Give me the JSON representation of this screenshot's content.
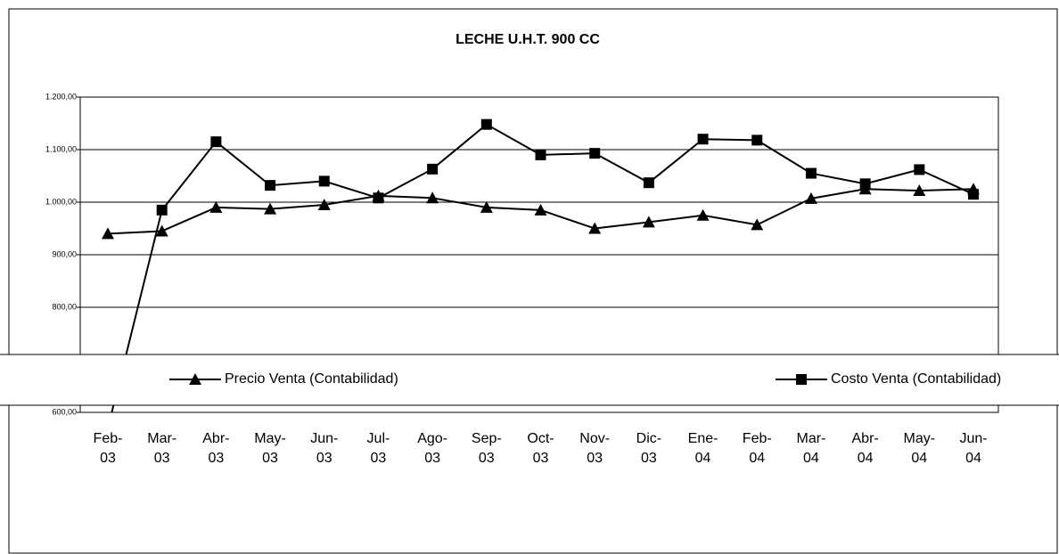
{
  "chart_data": {
    "type": "line",
    "title": "LECHE U.H.T. 900 CC",
    "categories": [
      "Feb-03",
      "Mar-03",
      "Abr-03",
      "May-03",
      "Jun-03",
      "Jul-03",
      "Ago-03",
      "Sep-03",
      "Oct-03",
      "Nov-03",
      "Dic-03",
      "Ene-04",
      "Feb-04",
      "Mar-04",
      "Abr-04",
      "May-04",
      "Jun-04"
    ],
    "series": [
      {
        "name": "Precio Venta (Contabilidad)",
        "color": "#000000",
        "marker": "triangle",
        "values": [
          940,
          945,
          990,
          987,
          995,
          1012,
          1008,
          990,
          985,
          950,
          962,
          975,
          957,
          1007,
          1025,
          1022,
          1025
        ]
      },
      {
        "name": "Costo Venta (Contabilidad)",
        "color": "#000000",
        "marker": "square",
        "values": [
          570,
          985,
          1115,
          1032,
          1040,
          1008,
          1063,
          1148,
          1090,
          1093,
          1037,
          1120,
          1118,
          1055,
          1035,
          1062,
          1015
        ]
      }
    ],
    "ylim": [
      600,
      1200
    ],
    "yticks": [
      {
        "value": 600,
        "label": "600,00"
      },
      {
        "value": 800,
        "label": "800,00"
      },
      {
        "value": 900,
        "label": "900,00"
      },
      {
        "value": 1000,
        "label": "1.000,00"
      },
      {
        "value": 1100,
        "label": "1.100,00"
      },
      {
        "value": 1200,
        "label": "1.200,00"
      }
    ],
    "grid": true
  }
}
